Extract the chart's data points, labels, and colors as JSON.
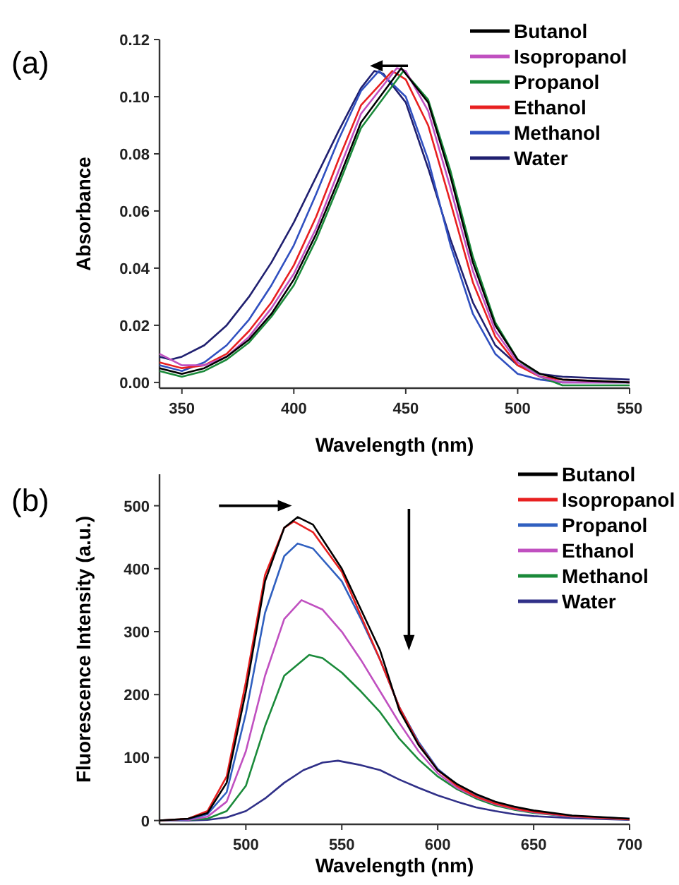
{
  "chart_data": [
    {
      "type": "line",
      "title": "(a)",
      "xlabel": "Wavelength (nm)",
      "ylabel": "Absorbance",
      "xlim": [
        340,
        550
      ],
      "xticks": [
        350,
        400,
        450,
        500,
        550
      ],
      "ylim": [
        -0.002,
        0.12
      ],
      "yticks": [
        {
          "value": 0,
          "label": "0.00"
        },
        {
          "value": 0.02,
          "label": "0.02"
        },
        {
          "value": 0.04,
          "label": "0.04"
        },
        {
          "value": 0.06,
          "label": "0.06"
        },
        {
          "value": 0.08,
          "label": "0.08"
        },
        {
          "value": 0.1,
          "label": "0.10"
        },
        {
          "value": 0.12,
          "label": "0.12"
        }
      ],
      "legend": "top right",
      "series": [
        {
          "name": "Butanol",
          "color": "#000000",
          "x": [
            340,
            350,
            360,
            370,
            380,
            390,
            400,
            410,
            420,
            430,
            448,
            460,
            470,
            480,
            490,
            500,
            510,
            520,
            550
          ],
          "values": [
            0.005,
            0.003,
            0.005,
            0.009,
            0.015,
            0.024,
            0.036,
            0.052,
            0.071,
            0.091,
            0.11,
            0.098,
            0.072,
            0.042,
            0.02,
            0.008,
            0.003,
            0.001,
            0.0
          ]
        },
        {
          "name": "Isopropanol",
          "color": "#c050c0",
          "x": [
            340,
            350,
            360,
            370,
            380,
            390,
            400,
            410,
            420,
            430,
            446,
            450,
            460,
            470,
            480,
            490,
            500,
            510,
            520,
            550
          ],
          "values": [
            0.01,
            0.006,
            0.006,
            0.009,
            0.016,
            0.026,
            0.038,
            0.054,
            0.074,
            0.094,
            0.11,
            0.109,
            0.095,
            0.068,
            0.039,
            0.018,
            0.007,
            0.002,
            0.0,
            0.0
          ]
        },
        {
          "name": "Propanol",
          "color": "#1a8a3a",
          "x": [
            340,
            350,
            360,
            370,
            380,
            390,
            400,
            410,
            420,
            430,
            449,
            460,
            470,
            480,
            490,
            500,
            510,
            520,
            550
          ],
          "values": [
            0.004,
            0.002,
            0.004,
            0.008,
            0.014,
            0.023,
            0.034,
            0.05,
            0.069,
            0.089,
            0.109,
            0.099,
            0.074,
            0.044,
            0.021,
            0.008,
            0.002,
            -0.001,
            -0.001
          ]
        },
        {
          "name": "Ethanol",
          "color": "#e82020",
          "x": [
            340,
            350,
            360,
            370,
            380,
            390,
            400,
            410,
            420,
            430,
            444,
            450,
            460,
            470,
            480,
            490,
            500,
            510,
            520,
            550
          ],
          "values": [
            0.007,
            0.005,
            0.006,
            0.01,
            0.018,
            0.028,
            0.041,
            0.058,
            0.078,
            0.097,
            0.109,
            0.106,
            0.09,
            0.063,
            0.035,
            0.016,
            0.006,
            0.002,
            0.001,
            0.0
          ]
        },
        {
          "name": "Methanol",
          "color": "#3050c0",
          "x": [
            340,
            350,
            360,
            370,
            380,
            390,
            400,
            410,
            420,
            430,
            438,
            450,
            460,
            470,
            480,
            490,
            500,
            510,
            520,
            550
          ],
          "values": [
            0.006,
            0.004,
            0.007,
            0.013,
            0.022,
            0.034,
            0.048,
            0.066,
            0.085,
            0.102,
            0.109,
            0.1,
            0.078,
            0.048,
            0.024,
            0.01,
            0.003,
            0.001,
            0.0,
            0.0
          ]
        },
        {
          "name": "Water",
          "color": "#202070",
          "x": [
            340,
            345,
            350,
            360,
            370,
            380,
            390,
            400,
            410,
            420,
            430,
            436,
            440,
            450,
            460,
            470,
            480,
            490,
            500,
            510,
            520,
            550
          ],
          "values": [
            0.009,
            0.008,
            0.009,
            0.013,
            0.02,
            0.03,
            0.042,
            0.056,
            0.072,
            0.088,
            0.103,
            0.109,
            0.108,
            0.098,
            0.075,
            0.05,
            0.028,
            0.013,
            0.006,
            0.003,
            0.002,
            0.001
          ]
        }
      ]
    },
    {
      "type": "line",
      "title": "(b)",
      "xlabel": "Wavelength (nm)",
      "ylabel": "Fluorescence Intensity (a.u.)",
      "xlim": [
        455,
        700
      ],
      "xticks": [
        500,
        550,
        600,
        650,
        700
      ],
      "ylim": [
        -6,
        550
      ],
      "yticks": [
        0,
        100,
        200,
        300,
        400,
        500
      ],
      "legend": "top right",
      "series": [
        {
          "name": "Butanol",
          "color": "#000000",
          "x": [
            455,
            470,
            480,
            490,
            500,
            510,
            520,
            527,
            535,
            550,
            560,
            570,
            580,
            590,
            600,
            610,
            620,
            630,
            640,
            650,
            670,
            700
          ],
          "values": [
            0,
            3,
            12,
            60,
            205,
            380,
            465,
            482,
            470,
            400,
            335,
            270,
            175,
            120,
            80,
            58,
            42,
            30,
            22,
            16,
            8,
            3
          ]
        },
        {
          "name": "Isopropanol",
          "color": "#e82020",
          "x": [
            455,
            470,
            480,
            490,
            500,
            510,
            520,
            525,
            535,
            550,
            560,
            570,
            580,
            590,
            600,
            610,
            620,
            630,
            640,
            650,
            670,
            700
          ],
          "values": [
            0,
            3,
            15,
            70,
            220,
            390,
            465,
            475,
            458,
            395,
            325,
            255,
            180,
            122,
            80,
            55,
            38,
            27,
            19,
            14,
            7,
            2
          ]
        },
        {
          "name": "Propanol",
          "color": "#3060c0",
          "x": [
            455,
            470,
            480,
            490,
            500,
            510,
            520,
            527,
            535,
            550,
            560,
            570,
            580,
            590,
            600,
            610,
            620,
            630,
            640,
            650,
            670,
            700
          ],
          "values": [
            0,
            2,
            10,
            45,
            170,
            330,
            420,
            440,
            432,
            380,
            320,
            255,
            180,
            125,
            82,
            57,
            40,
            28,
            20,
            15,
            7,
            3
          ]
        },
        {
          "name": "Ethanol",
          "color": "#c050c0",
          "x": [
            455,
            470,
            480,
            490,
            500,
            510,
            520,
            529,
            540,
            550,
            560,
            570,
            580,
            590,
            600,
            610,
            620,
            630,
            640,
            650,
            670,
            700
          ],
          "values": [
            0,
            1,
            6,
            30,
            110,
            230,
            320,
            350,
            335,
            300,
            255,
            205,
            155,
            110,
            75,
            52,
            37,
            26,
            18,
            13,
            6,
            2
          ]
        },
        {
          "name": "Methanol",
          "color": "#1a8a3a",
          "x": [
            455,
            470,
            480,
            490,
            500,
            510,
            520,
            533,
            540,
            550,
            560,
            570,
            580,
            590,
            600,
            610,
            620,
            630,
            640,
            650,
            670,
            700
          ],
          "values": [
            0,
            1,
            3,
            15,
            55,
            150,
            230,
            263,
            258,
            235,
            205,
            172,
            130,
            97,
            70,
            50,
            35,
            24,
            17,
            12,
            6,
            2
          ]
        },
        {
          "name": "Water",
          "color": "#303088",
          "x": [
            455,
            470,
            480,
            490,
            500,
            510,
            520,
            530,
            540,
            548,
            560,
            570,
            580,
            590,
            600,
            610,
            620,
            630,
            640,
            650,
            670,
            700
          ],
          "values": [
            0,
            0,
            1,
            5,
            15,
            35,
            60,
            80,
            92,
            95,
            88,
            80,
            65,
            52,
            40,
            30,
            21,
            15,
            10,
            7,
            4,
            1
          ]
        }
      ]
    }
  ]
}
